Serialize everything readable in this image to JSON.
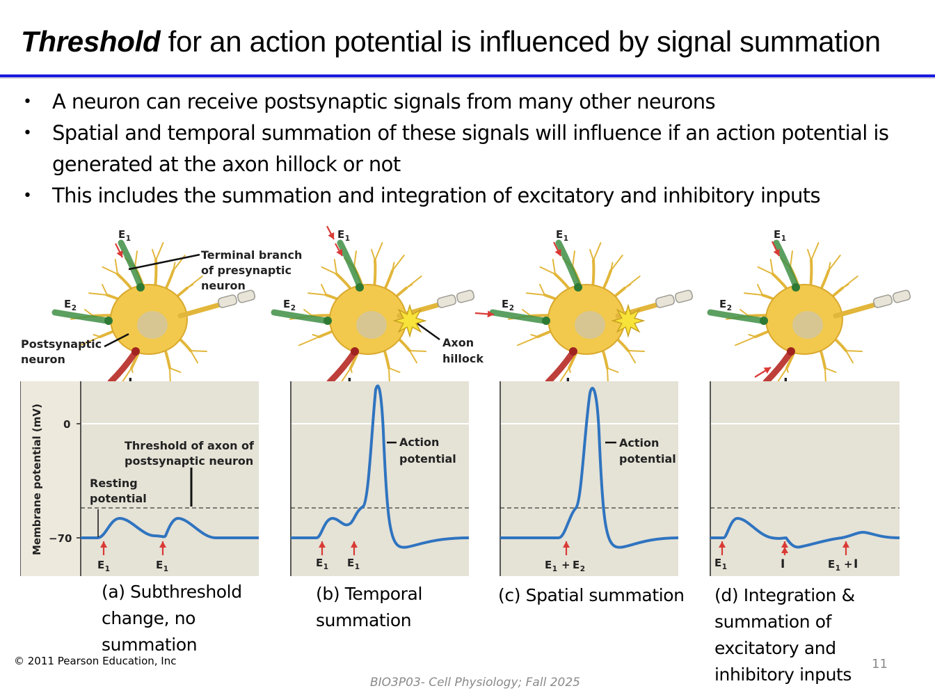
{
  "title": {
    "emphasis": "Threshold",
    "rest": " for an action potential is influenced by signal summation"
  },
  "bullets": [
    "A neuron can receive postsynaptic signals from many other neurons",
    "Spatial and temporal summation of these signals will influence if an action potential is generated at the axon hillock or not",
    "This includes the summation and integration of excitatory and inhibitory inputs"
  ],
  "bullet_symbol": "•",
  "figure": {
    "neuron_labels": {
      "e1": "E",
      "e2": "E",
      "sub1": "1",
      "sub2": "2",
      "inhib": "I",
      "terminal_branch_1": "Terminal branch",
      "terminal_branch_2": "of presynaptic",
      "terminal_branch_3": "neuron",
      "postsynaptic_1": "Postsynaptic",
      "postsynaptic_2": "neuron",
      "axon_hillock_1": "Axon",
      "axon_hillock_2": "hillock"
    },
    "graph_labels": {
      "y_axis": "Membrane potential (mV)",
      "tick_0": "0",
      "tick_70": "−70",
      "threshold_1": "Threshold of axon of",
      "threshold_2": "postsynaptic neuron",
      "resting_1": "Resting",
      "resting_2": "potential",
      "ap_1": "Action",
      "ap_2": "potential",
      "plus": "+"
    },
    "colors": {
      "trace": "#2f74c0",
      "panel_bg": "#e5e2d6",
      "arrow": "#d93a35",
      "excitatory_axon": "#3f8f45",
      "inhibitory_axon": "#b72a25",
      "neuron_body": "#f2c94c"
    }
  },
  "captions": [
    "(a) Subthreshold change, no summation",
    "(b) Temporal summation",
    "(c) Spatial summation",
    "(d) Integration & summation of excitatory and inhibitory inputs"
  ],
  "copyright": "© 2011 Pearson Education, Inc",
  "footer": "BIO3P03- Cell Physiology; Fall 2025",
  "page_number": "11"
}
